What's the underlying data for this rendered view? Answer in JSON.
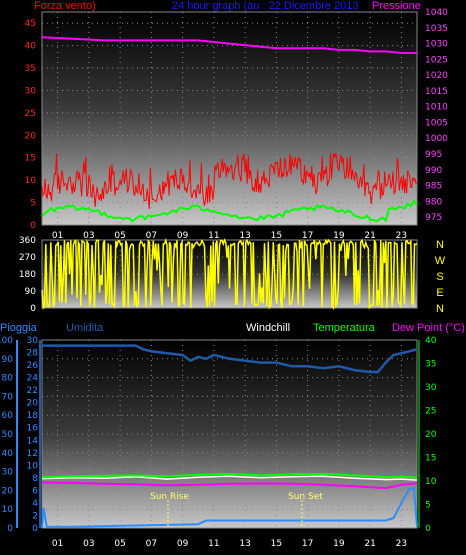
{
  "top_labels": {
    "left": "Forza vento)",
    "center": "24 hour graph (au : 22 Dicembre 2013",
    "right": "Pressione"
  },
  "bottom_labels": {
    "pioggia": "Pioggia",
    "umidita": "Umidita",
    "windchill": "Windchill",
    "temperatura": "Temperatura",
    "dewpoint": "Dew Point (°C)"
  },
  "annotations": {
    "sunrise": "Sun Rise",
    "sunset": "Sun Set"
  },
  "colors": {
    "wind_speed": "#ff0000",
    "wind_avg": "#00ff00",
    "pressure": "#ff00ff",
    "wind_dir": "#ffff00",
    "humidity": "#1e5aa8",
    "rain": "#2d8cff",
    "temperature": "#00ff00",
    "dew_point": "#ff00ff",
    "windchill": "#ffffff"
  },
  "chart_data": [
    {
      "type": "line",
      "title": "24 hour graph (au : 22 Dicembre 2013",
      "x_ticks": [
        "01",
        "03",
        "05",
        "07",
        "09",
        "11",
        "13",
        "15",
        "17",
        "19",
        "21",
        "23"
      ],
      "left_axis": {
        "label": "Forza vento)",
        "ticks": [
          0,
          5,
          10,
          15,
          20,
          25,
          30,
          35,
          40,
          45
        ],
        "range": [
          0,
          47.5
        ]
      },
      "right_axis": {
        "label": "Pressione",
        "ticks": [
          975,
          980,
          985,
          990,
          995,
          1000,
          1005,
          1010,
          1015,
          1020,
          1025,
          1030,
          1035,
          1040
        ],
        "range": [
          972.5,
          1040
        ]
      },
      "series": [
        {
          "name": "Pressione",
          "axis": "right",
          "x": [
            0,
            2,
            4,
            6,
            8,
            10,
            11,
            12,
            13,
            14,
            15,
            16,
            17,
            18,
            19,
            20,
            21,
            22,
            23,
            24
          ],
          "values": [
            1032,
            1031.5,
            1031,
            1031,
            1031,
            1031,
            1030.5,
            1030,
            1029.5,
            1029,
            1028.5,
            1028.5,
            1028.5,
            1028.5,
            1028,
            1028,
            1027.5,
            1027.5,
            1027,
            1027
          ]
        }
      ]
    },
    {
      "type": "line",
      "y_ticks": [
        0,
        90,
        180,
        270,
        360
      ],
      "range": [
        0,
        360
      ],
      "direction_labels": [
        "N",
        "W",
        "S",
        "E",
        "N"
      ]
    },
    {
      "type": "line",
      "x_ticks": [
        "01",
        "03",
        "05",
        "07",
        "09",
        "11",
        "13",
        "15",
        "17",
        "19",
        "21",
        "23"
      ],
      "left_axis_outer": {
        "label": "Pioggia",
        "ticks": [
          0,
          10,
          20,
          30,
          40,
          50,
          60,
          70,
          80,
          90,
          100
        ]
      },
      "left_axis_inner": {
        "label": "Umidita",
        "ticks": [
          0,
          2,
          4,
          6,
          8,
          10,
          12,
          14,
          16,
          18,
          20,
          22,
          24,
          26,
          28,
          30
        ]
      },
      "right_axis": {
        "label": "Dew Point (°C)",
        "ticks": [
          0,
          5,
          10,
          15,
          20,
          25,
          30,
          35,
          40
        ]
      },
      "series": [
        {
          "name": "Umidita",
          "axis": "left_outer",
          "x": [
            0,
            3,
            6,
            6.5,
            7,
            8,
            9,
            9.5,
            10,
            10.5,
            11,
            12,
            13,
            14,
            15,
            16,
            17,
            18,
            19,
            20,
            21,
            21.5,
            22,
            22.5,
            23,
            23.5,
            24
          ],
          "values": [
            97,
            97,
            97,
            95,
            94,
            93,
            92,
            89,
            91,
            90,
            92,
            90,
            89,
            88,
            88,
            86,
            86,
            85,
            86,
            84,
            83,
            83,
            88,
            92,
            93,
            94,
            95
          ]
        },
        {
          "name": "Pioggia",
          "axis": "left_inner",
          "x": [
            0,
            0.1,
            0.3,
            2,
            4,
            6,
            8,
            10,
            10.5,
            12,
            14,
            16,
            18,
            20,
            22,
            22.5,
            23,
            23.5,
            23.8,
            24
          ],
          "values": [
            0,
            3.2,
            0.2,
            0.2,
            0.3,
            0.4,
            0.5,
            0.6,
            1.2,
            1.2,
            1.2,
            1.2,
            1.2,
            1.2,
            1.2,
            1.6,
            4,
            6.2,
            6.4,
            0.3
          ]
        },
        {
          "name": "Temperatura",
          "axis": "right",
          "x": [
            0,
            2,
            4,
            6,
            8,
            10,
            12,
            14,
            16,
            18,
            20,
            22,
            23,
            24
          ],
          "values": [
            10.8,
            11,
            11.1,
            11.2,
            11,
            11.3,
            11.5,
            11.2,
            11.4,
            11.5,
            11.2,
            10.8,
            10.9,
            10.7
          ]
        },
        {
          "name": "Dew Point (°C)",
          "axis": "right",
          "x": [
            0,
            2,
            4,
            6,
            8,
            10,
            12,
            14,
            16,
            18,
            20,
            22,
            23,
            24
          ],
          "values": [
            9.7,
            9.6,
            9.4,
            9.3,
            9.1,
            9.2,
            9.4,
            9.5,
            9.4,
            9.2,
            8.9,
            8.5,
            9.2,
            9.5
          ]
        },
        {
          "name": "Windchill",
          "axis": "right",
          "x": [
            0,
            2,
            4,
            6,
            8,
            10,
            12,
            14,
            16,
            18,
            20,
            22,
            23,
            24
          ],
          "values": [
            10.5,
            10.7,
            10.6,
            10.9,
            10.4,
            10.8,
            11,
            10.7,
            10.9,
            11,
            10.6,
            10.3,
            10.4,
            10.2
          ]
        }
      ]
    }
  ]
}
